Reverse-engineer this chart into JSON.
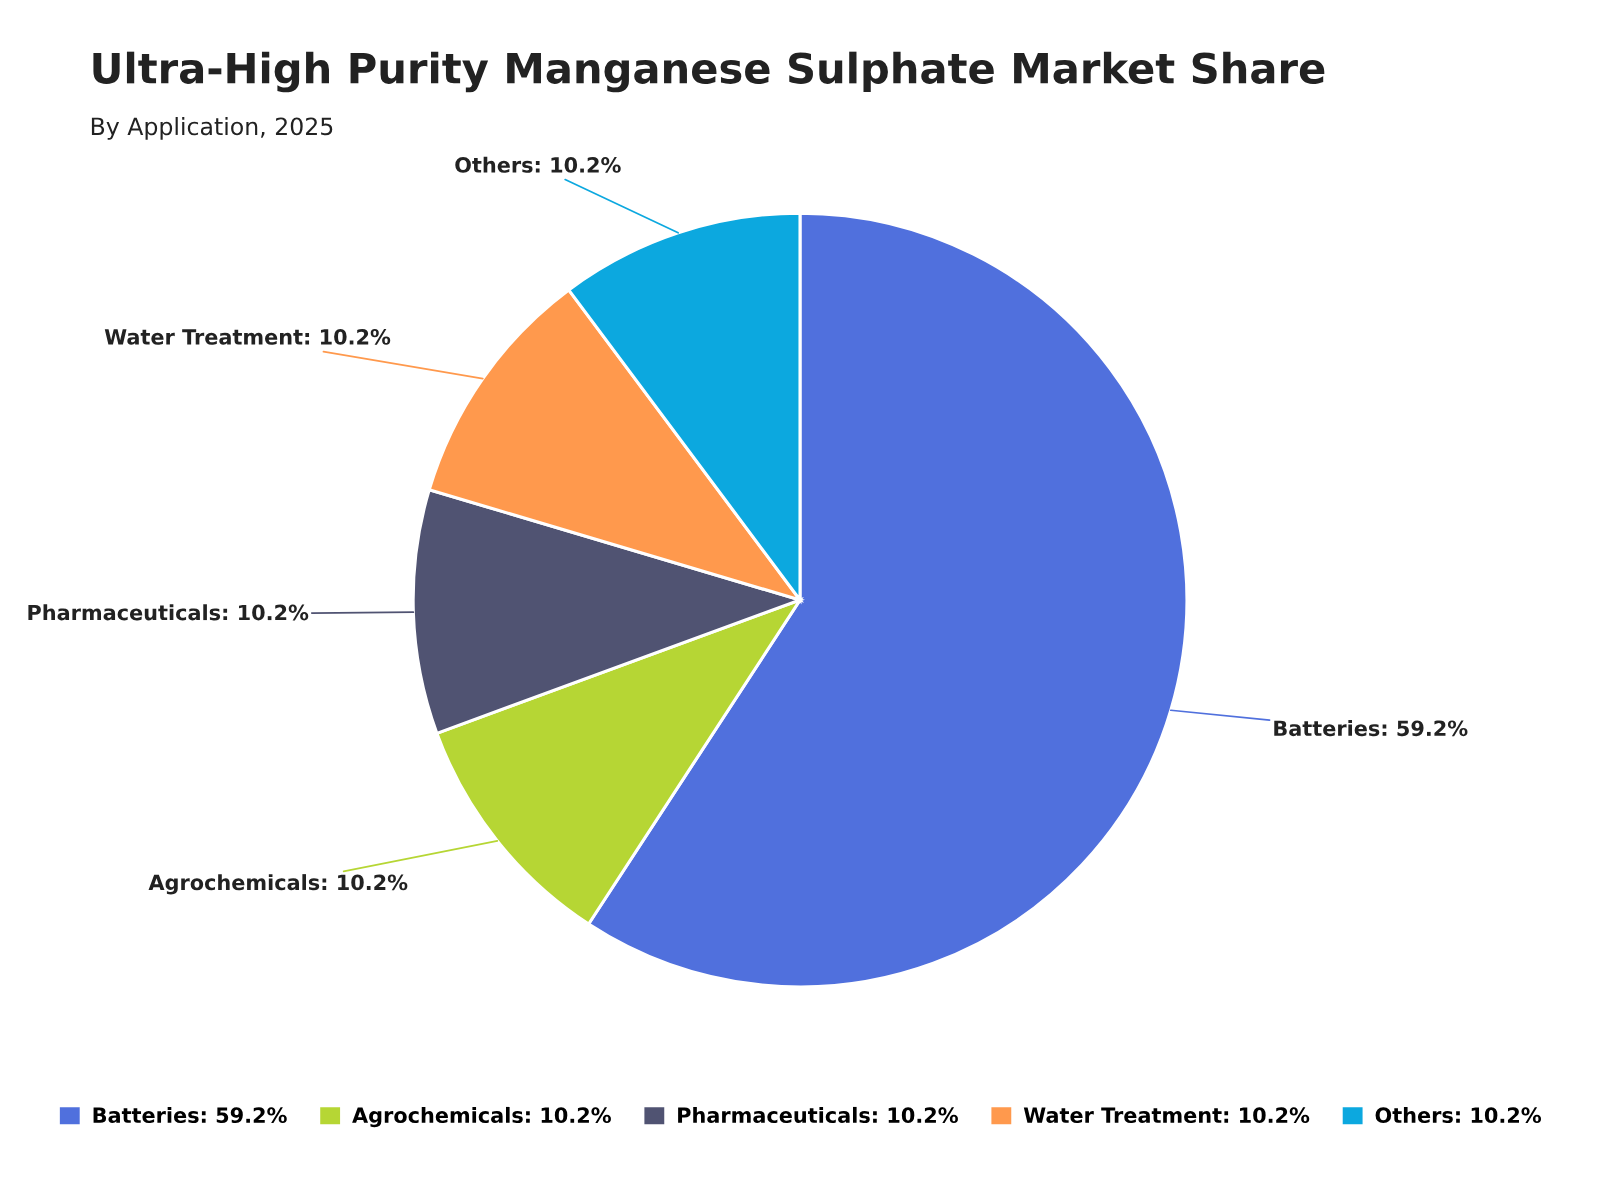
{
  "chart_data": {
    "type": "pie",
    "title": "Ultra-High Purity Manganese Sulphate Market Share",
    "subtitle": "By Application, 2025",
    "categories": [
      "Batteries: 59.2%",
      "Agrochemicals: 10.2%",
      "Pharmaceuticals: 10.2%",
      "Water Treatment: 10.2%",
      "Others: 10.2%"
    ],
    "values": [
      59.2,
      10.2,
      10.2,
      10.2,
      10.2
    ],
    "colors": [
      "#5070dd",
      "#b6d634",
      "#505372",
      "#ff994d",
      "#0ca8df"
    ],
    "legend": "bottom"
  }
}
